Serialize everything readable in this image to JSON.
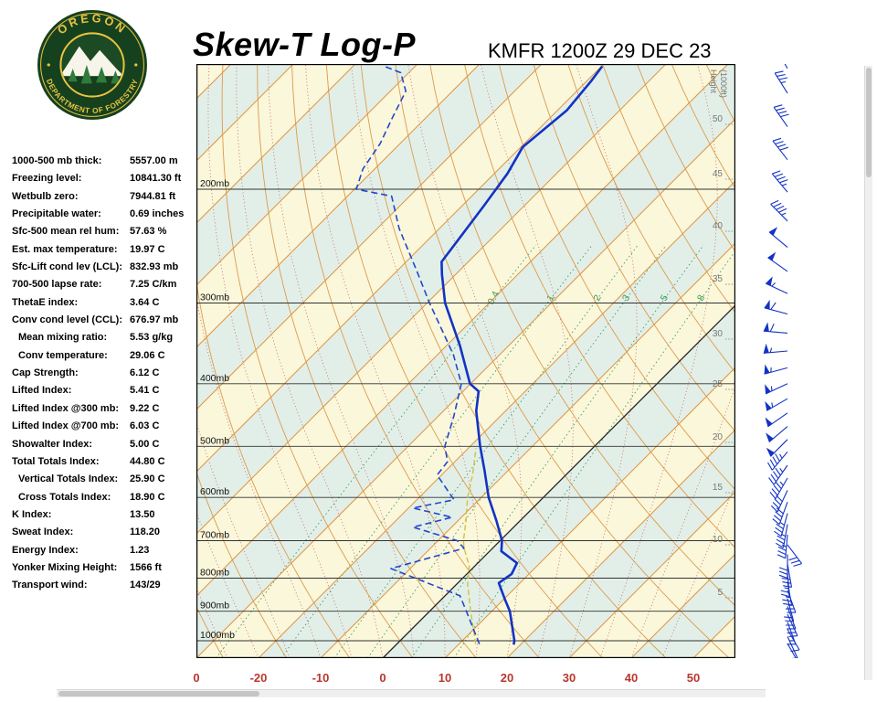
{
  "header": {
    "title": "Skew-T Log-P",
    "station_line": "KMFR 1200Z 29 DEC 23"
  },
  "logo": {
    "top": "OREGON",
    "bottom": "DEPARTMENT OF FORESTRY"
  },
  "indices": [
    {
      "label": "1000-500 mb thick:",
      "value": "5557.00 m",
      "indent": false
    },
    {
      "label": "Freezing level:",
      "value": "10841.30 ft",
      "indent": false
    },
    {
      "label": "Wetbulb zero:",
      "value": "7944.81 ft",
      "indent": false
    },
    {
      "label": "Precipitable water:",
      "value": "0.69 inches",
      "indent": false
    },
    {
      "label": "Sfc-500 mean rel hum:",
      "value": "57.63 %",
      "indent": false
    },
    {
      "label": "Est. max temperature:",
      "value": "19.97 C",
      "indent": false
    },
    {
      "label": "Sfc-Lift cond lev (LCL):",
      "value": "832.93 mb",
      "indent": false
    },
    {
      "label": "700-500 lapse rate:",
      "value": "7.25 C/km",
      "indent": false
    },
    {
      "label": "ThetaE index:",
      "value": "3.64 C",
      "indent": false
    },
    {
      "label": "Conv cond level (CCL):",
      "value": "676.97 mb",
      "indent": false
    },
    {
      "label": "Mean mixing ratio:",
      "value": "5.53 g/kg",
      "indent": true
    },
    {
      "label": "Conv temperature:",
      "value": "29.06 C",
      "indent": true
    },
    {
      "label": "Cap Strength:",
      "value": "6.12 C",
      "indent": false
    },
    {
      "label": "Lifted Index:",
      "value": "5.41 C",
      "indent": false
    },
    {
      "label": "Lifted Index @300 mb:",
      "value": "9.22 C",
      "indent": false
    },
    {
      "label": "Lifted Index @700 mb:",
      "value": "6.03 C",
      "indent": false
    },
    {
      "label": "Showalter Index:",
      "value": "5.00 C",
      "indent": false
    },
    {
      "label": "Total Totals Index:",
      "value": "44.80 C",
      "indent": false
    },
    {
      "label": "Vertical Totals Index:",
      "value": "25.90 C",
      "indent": true
    },
    {
      "label": "Cross Totals Index:",
      "value": "18.90 C",
      "indent": true
    },
    {
      "label": "K Index:",
      "value": "13.50",
      "indent": false
    },
    {
      "label": "Sweat Index:",
      "value": "118.20",
      "indent": false
    },
    {
      "label": "Energy Index:",
      "value": "1.23",
      "indent": false
    },
    {
      "label": "Yonker Mixing Height:",
      "value": "1566 ft",
      "indent": false
    },
    {
      "label": "Transport wind:",
      "value": "143/29",
      "indent": false
    }
  ],
  "chart_data": {
    "type": "skewt-log-p",
    "station": "KMFR",
    "valid_time": "1200Z 29 DEC 23",
    "x_axis": {
      "corner_label": "0",
      "ticks_c": [
        -20,
        -10,
        0,
        10,
        20,
        30,
        40,
        50
      ],
      "unit": "C"
    },
    "pressure_levels_mb": [
      200,
      300,
      400,
      500,
      600,
      700,
      800,
      900,
      1000
    ],
    "pressure_labels": [
      "200mb",
      "300mb",
      "400mb",
      "500mb",
      "600mb",
      "700mb",
      "800mb",
      "900mb",
      "1000mb"
    ],
    "height_ticks_kft": [
      50,
      45,
      40,
      35,
      30,
      25,
      20,
      15,
      10,
      5
    ],
    "height_axis_label_lines": [
      "Height",
      "(1000ft)"
    ],
    "mixing_ratio_lines_gkg": [
      0.4,
      1,
      2,
      3,
      5,
      8
    ],
    "temperature_profile": [
      [
        1014,
        18.9
      ],
      [
        1000,
        18.4
      ],
      [
        900,
        12.9
      ],
      [
        860,
        10.0
      ],
      [
        814,
        6.6
      ],
      [
        788,
        7.2
      ],
      [
        758,
        6.3
      ],
      [
        727,
        1.9
      ],
      [
        700,
        0.3
      ],
      [
        652,
        -3.8
      ],
      [
        600,
        -8.8
      ],
      [
        545,
        -13.8
      ],
      [
        500,
        -18.4
      ],
      [
        441,
        -24.7
      ],
      [
        411,
        -27.5
      ],
      [
        400,
        -30.1
      ],
      [
        349,
        -37.9
      ],
      [
        300,
        -47.1
      ],
      [
        271,
        -52.2
      ],
      [
        259,
        -54.3
      ],
      [
        212,
        -56.5
      ],
      [
        189,
        -57.9
      ],
      [
        172,
        -59.7
      ],
      [
        151,
        -58.5
      ],
      [
        136,
        -59.3
      ],
      [
        129,
        -59.9
      ]
    ],
    "dewpoint_profile": [
      [
        1012,
        13.3
      ],
      [
        900,
        5.9
      ],
      [
        852,
        2.4
      ],
      [
        773,
        -13.1
      ],
      [
        719,
        -4.6
      ],
      [
        700,
        -6.9
      ],
      [
        667,
        -16.2
      ],
      [
        644,
        -11.5
      ],
      [
        623,
        -19.3
      ],
      [
        605,
        -14.0
      ],
      [
        554,
        -20.7
      ],
      [
        528,
        -21.2
      ],
      [
        500,
        -24.1
      ],
      [
        449,
        -27.5
      ],
      [
        400,
        -31.5
      ],
      [
        361,
        -37.4
      ],
      [
        300,
        -49.6
      ],
      [
        266,
        -57.2
      ],
      [
        230,
        -66.5
      ],
      [
        205,
        -72.9
      ],
      [
        200,
        -79.7
      ],
      [
        186,
        -81.9
      ],
      [
        170,
        -83.2
      ],
      [
        155,
        -85.4
      ],
      [
        141,
        -87.5
      ],
      [
        132,
        -91.3
      ],
      [
        129,
        -95.0
      ]
    ],
    "parcel_profile": [
      [
        1012,
        12.7
      ],
      [
        900,
        6.6
      ],
      [
        818,
        1.8
      ],
      [
        766,
        -0.9
      ],
      [
        719,
        -4.6
      ],
      [
        700,
        -5.9
      ],
      [
        652,
        -8.7
      ],
      [
        600,
        -12.2
      ],
      [
        554,
        -15.0
      ],
      [
        503,
        -18.8
      ]
    ],
    "wind_barbs": [
      {
        "p": 1010,
        "dir": 150,
        "spd": 8
      },
      {
        "p": 985,
        "dir": 155,
        "spd": 10
      },
      {
        "p": 960,
        "dir": 150,
        "spd": 12
      },
      {
        "p": 935,
        "dir": 160,
        "spd": 15
      },
      {
        "p": 910,
        "dir": 155,
        "spd": 18
      },
      {
        "p": 885,
        "dir": 160,
        "spd": 20
      },
      {
        "p": 860,
        "dir": 165,
        "spd": 20
      },
      {
        "p": 835,
        "dir": 160,
        "spd": 25
      },
      {
        "p": 810,
        "dir": 170,
        "spd": 25
      },
      {
        "p": 785,
        "dir": 175,
        "spd": 25
      },
      {
        "p": 760,
        "dir": 170,
        "spd": 30
      },
      {
        "p": 735,
        "dir": 180,
        "spd": 30
      },
      {
        "p": 710,
        "dir": 143,
        "spd": 29
      },
      {
        "p": 685,
        "dir": 185,
        "spd": 35
      },
      {
        "p": 660,
        "dir": 190,
        "spd": 35
      },
      {
        "p": 635,
        "dir": 195,
        "spd": 35
      },
      {
        "p": 610,
        "dir": 200,
        "spd": 40
      },
      {
        "p": 585,
        "dir": 205,
        "spd": 40
      },
      {
        "p": 560,
        "dir": 210,
        "spd": 45
      },
      {
        "p": 535,
        "dir": 215,
        "spd": 45
      },
      {
        "p": 510,
        "dir": 220,
        "spd": 45
      },
      {
        "p": 488,
        "dir": 225,
        "spd": 50
      },
      {
        "p": 466,
        "dir": 230,
        "spd": 50
      },
      {
        "p": 444,
        "dir": 235,
        "spd": 50
      },
      {
        "p": 422,
        "dir": 240,
        "spd": 55
      },
      {
        "p": 400,
        "dir": 245,
        "spd": 55
      },
      {
        "p": 378,
        "dir": 255,
        "spd": 55
      },
      {
        "p": 356,
        "dir": 265,
        "spd": 55
      },
      {
        "p": 334,
        "dir": 275,
        "spd": 60
      },
      {
        "p": 312,
        "dir": 285,
        "spd": 60
      },
      {
        "p": 290,
        "dir": 295,
        "spd": 55
      },
      {
        "p": 268,
        "dir": 305,
        "spd": 50
      },
      {
        "p": 246,
        "dir": 310,
        "spd": 50
      },
      {
        "p": 224,
        "dir": 315,
        "spd": 45
      },
      {
        "p": 202,
        "dir": 320,
        "spd": 45
      },
      {
        "p": 180,
        "dir": 322,
        "spd": 40
      },
      {
        "p": 160,
        "dir": 325,
        "spd": 40
      },
      {
        "p": 142,
        "dir": 328,
        "spd": 35
      },
      {
        "p": 130,
        "dir": 330,
        "spd": 35
      }
    ],
    "colors": {
      "band_cream": "#FAF7DB",
      "band_green": "#E2EFE8",
      "isotherm": "#E0953F",
      "zero_isotherm": "#222222",
      "dry_adiabat": "#DE9A4A",
      "moist_adiabat": "#C4625A",
      "mixing_ratio": "#3F9B5C",
      "pressure_line": "#333333",
      "temperature": "#1333C4",
      "dewpoint": "#2247CC",
      "parcel": "#D4C23C",
      "wind_barb": "#1333C4",
      "axis_label": "#B8382E",
      "height_label": "#777777"
    }
  }
}
